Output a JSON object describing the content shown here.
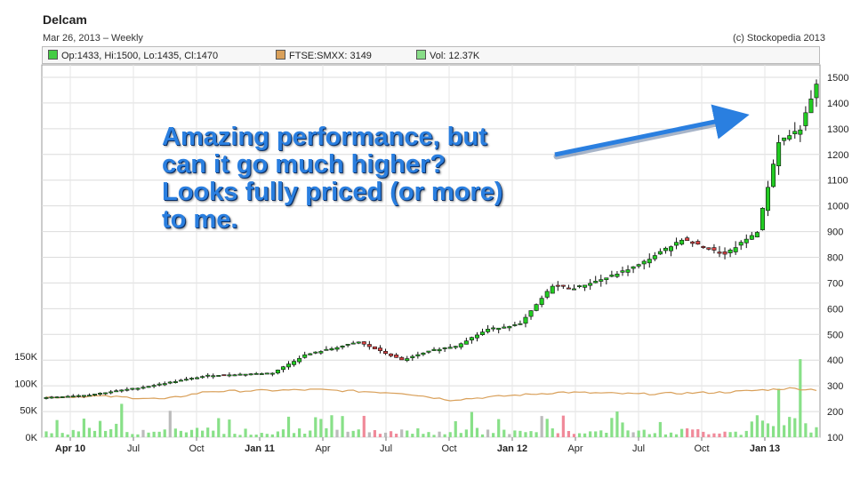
{
  "header": {
    "title": "Delcam",
    "subtitle": "Mar 26, 2013 – Weekly",
    "copyright": "(c) Stockopedia 2013"
  },
  "legend": {
    "price": "Op:1433, Hi:1500, Lo:1435, Cl:1470",
    "index": "FTSE:SMXX: 3149",
    "volume": "Vol: 12.37K",
    "colors": {
      "price": "#44cc44",
      "index": "#d9a05a",
      "volume": "#88dd88"
    }
  },
  "annotation": {
    "lines": [
      "Amazing performance, but",
      "can it go much higher?",
      "Looks fully priced (or more)",
      "to me."
    ],
    "color": "#2a7fe0"
  },
  "chart_data": {
    "type": "candlestick",
    "title": "Delcam",
    "x_ticks": [
      "Apr 10",
      "Jul",
      "Oct",
      "Jan 11",
      "Apr",
      "Jul",
      "Oct",
      "Jan 12",
      "Apr",
      "Jul",
      "Oct",
      "Jan 13"
    ],
    "x_ticks_bold": [
      "Apr 10",
      "Jan 11",
      "Jan 12",
      "Jan 13"
    ],
    "price_axis": {
      "ticks": [
        "100",
        "200",
        "300",
        "400",
        "500",
        "600",
        "700",
        "800",
        "900",
        "1000",
        "1100",
        "1200",
        "1300",
        "1400",
        "1500"
      ],
      "range": [
        100,
        1500
      ],
      "side": "right"
    },
    "volume_axis": {
      "ticks": [
        "0K",
        "50K",
        "100K",
        "150K"
      ],
      "range": [
        0,
        160000
      ],
      "side": "left"
    },
    "price_close_keypoints": [
      {
        "week": 0,
        "close": 255
      },
      {
        "week": 8,
        "close": 265
      },
      {
        "week": 18,
        "close": 295
      },
      {
        "week": 30,
        "close": 340
      },
      {
        "week": 42,
        "close": 350
      },
      {
        "week": 48,
        "close": 420
      },
      {
        "week": 58,
        "close": 470
      },
      {
        "week": 66,
        "close": 400
      },
      {
        "week": 72,
        "close": 440
      },
      {
        "week": 76,
        "close": 455
      },
      {
        "week": 82,
        "close": 520
      },
      {
        "week": 88,
        "close": 540
      },
      {
        "week": 94,
        "close": 690
      },
      {
        "week": 98,
        "close": 680
      },
      {
        "week": 104,
        "close": 720
      },
      {
        "week": 110,
        "close": 770
      },
      {
        "week": 118,
        "close": 870
      },
      {
        "week": 126,
        "close": 810
      },
      {
        "week": 132,
        "close": 900
      },
      {
        "week": 136,
        "close": 1250
      },
      {
        "week": 140,
        "close": 1300
      },
      {
        "week": 143,
        "close": 1470
      }
    ],
    "index_line_keypoints": [
      {
        "week": 0,
        "value": 255
      },
      {
        "week": 10,
        "value": 260
      },
      {
        "week": 22,
        "value": 248
      },
      {
        "week": 30,
        "value": 278
      },
      {
        "week": 50,
        "value": 285
      },
      {
        "week": 66,
        "value": 272
      },
      {
        "week": 75,
        "value": 245
      },
      {
        "week": 86,
        "value": 262
      },
      {
        "week": 96,
        "value": 275
      },
      {
        "week": 110,
        "value": 268
      },
      {
        "week": 126,
        "value": 275
      },
      {
        "week": 138,
        "value": 290
      },
      {
        "week": 143,
        "value": 285
      }
    ],
    "weeks": 144,
    "grid": true,
    "up_color": "#22cc22",
    "down_color": "#dd4444"
  }
}
